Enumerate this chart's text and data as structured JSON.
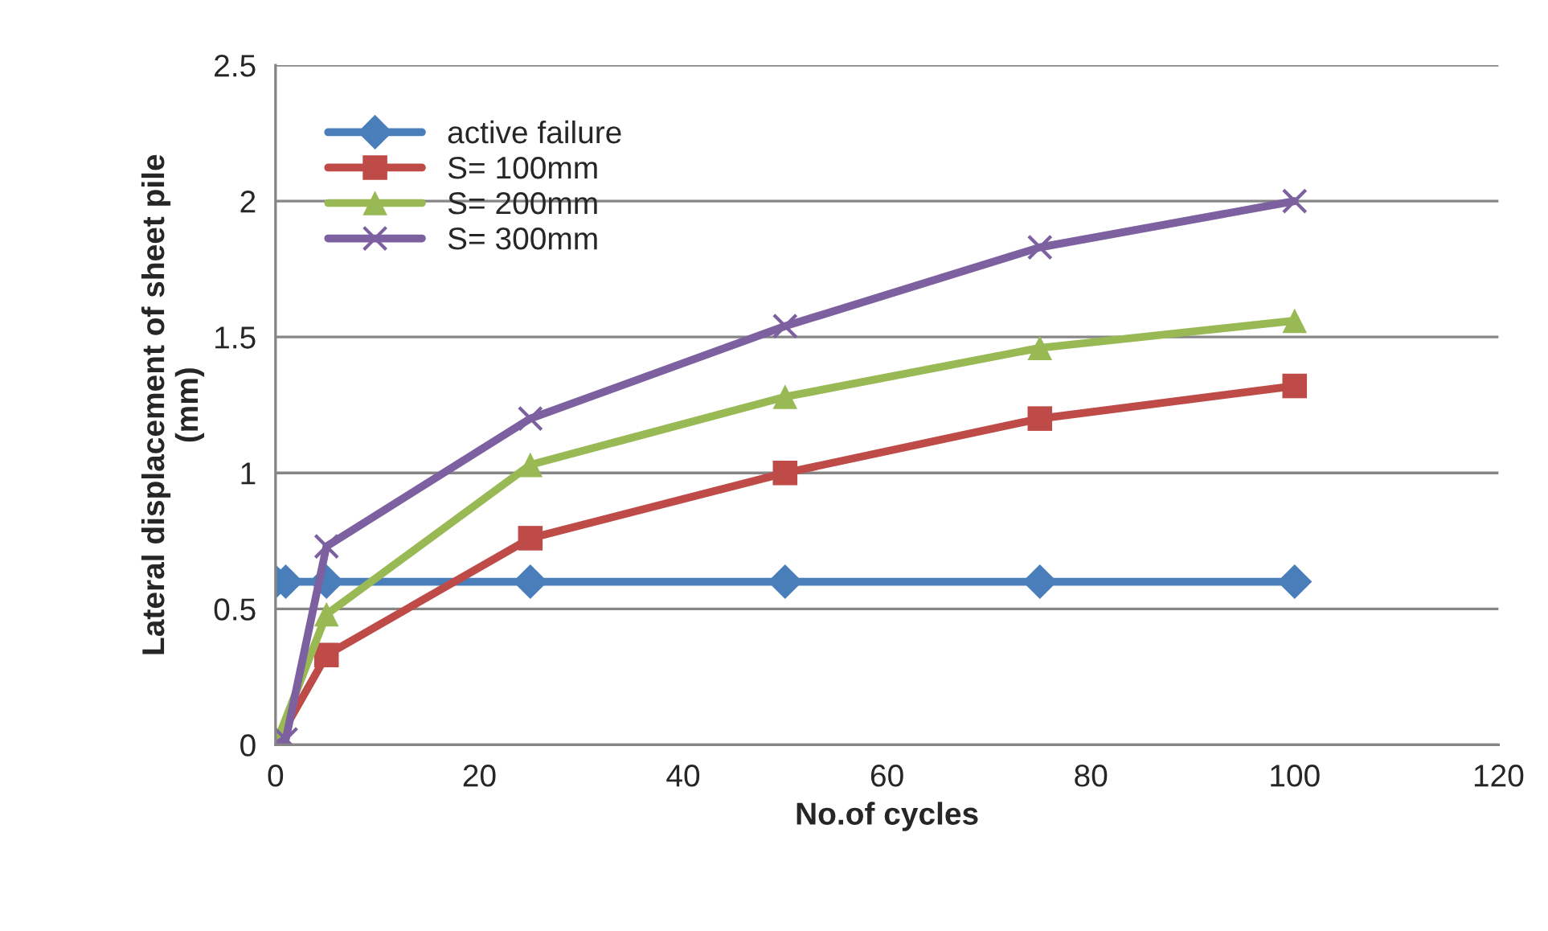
{
  "chart_data": {
    "type": "line",
    "xlabel": "No.of cycles",
    "ylabel": "Lateral displacement of sheet pile\n(mm)",
    "x": [
      0,
      1,
      5,
      25,
      50,
      75,
      100
    ],
    "xlim": [
      0,
      120
    ],
    "xticks": [
      0,
      20,
      40,
      60,
      80,
      100,
      120
    ],
    "ylim": [
      0,
      2.5
    ],
    "yticks": [
      0,
      0.5,
      1,
      1.5,
      2,
      2.5
    ],
    "grid": "y",
    "legend": "top left",
    "line_style": "solid",
    "series": [
      {
        "name": "active failure",
        "color": "#4a7ebb",
        "marker": "diamond",
        "values": [
          0.6,
          0.6,
          0.6,
          0.6,
          0.6,
          0.6,
          0.6
        ]
      },
      {
        "name": "S= 100mm",
        "color": "#be4b48",
        "marker": "square",
        "values": [
          0,
          null,
          0.33,
          0.76,
          1.0,
          1.2,
          1.32
        ]
      },
      {
        "name": "S= 200mm",
        "color": "#98b954",
        "marker": "triangle",
        "values": [
          0,
          null,
          0.48,
          1.03,
          1.28,
          1.46,
          1.56
        ]
      },
      {
        "name": "S= 300mm",
        "color": "#7d60a0",
        "marker": "cross",
        "values": [
          0,
          0.02,
          0.73,
          1.2,
          1.54,
          1.83,
          2.0
        ]
      }
    ]
  }
}
